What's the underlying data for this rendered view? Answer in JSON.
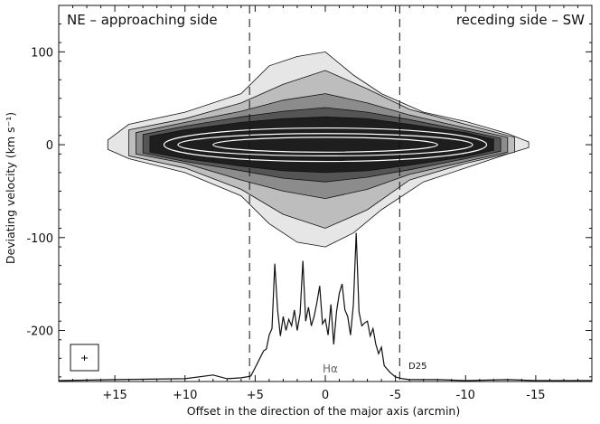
{
  "chart_data": {
    "type": "heatmap",
    "description_labels": {
      "left_label": "NE – approaching side",
      "right_label": "receding side – SW",
      "ylabel": "Deviating velocity (km s⁻¹)",
      "xlabel": "Offset in the direction of the major axis (arcmin)",
      "d25_label": "D25",
      "halpha_label": "Hα"
    },
    "x_axis": {
      "xlim": [
        19,
        -19
      ],
      "ticks": [
        15,
        10,
        5,
        0,
        -5,
        -10,
        -15
      ],
      "tick_labels": [
        "+15",
        "+10",
        "+5",
        "0",
        "-5",
        "-10",
        "-15"
      ],
      "reversed": true
    },
    "y_axis": {
      "ylim": [
        -255,
        150
      ],
      "ticks": [
        100,
        0,
        -100,
        -200
      ],
      "tick_labels": [
        "100",
        "0",
        "-100",
        "-200"
      ]
    },
    "d25_markers": [
      5.4,
      -5.3
    ],
    "contour_levels": [
      {
        "half_width_profile": [
          [
            15.5,
            5
          ],
          [
            14,
            22
          ],
          [
            10,
            35
          ],
          [
            6,
            55
          ],
          [
            4,
            85
          ],
          [
            2,
            95
          ],
          [
            0,
            100
          ],
          [
            -2,
            75
          ],
          [
            -4,
            55
          ],
          [
            -7,
            35
          ],
          [
            -10,
            25
          ],
          [
            -13,
            12
          ],
          [
            -14.5,
            3
          ]
        ],
        "lower_profile": [
          [
            15.5,
            -5
          ],
          [
            14,
            -15
          ],
          [
            10,
            -30
          ],
          [
            6,
            -55
          ],
          [
            4,
            -85
          ],
          [
            2,
            -105
          ],
          [
            0,
            -110
          ],
          [
            -2,
            -95
          ],
          [
            -4,
            -70
          ],
          [
            -7,
            -40
          ],
          [
            -10,
            -25
          ],
          [
            -13,
            -10
          ],
          [
            -14.5,
            -3
          ]
        ],
        "fill": "#e6e6e6"
      },
      {
        "half_width_profile": [
          [
            14,
            16
          ],
          [
            10,
            28
          ],
          [
            6,
            45
          ],
          [
            3,
            65
          ],
          [
            0,
            80
          ],
          [
            -3,
            60
          ],
          [
            -6,
            38
          ],
          [
            -10,
            22
          ],
          [
            -13.5,
            8
          ]
        ],
        "lower_profile": [
          [
            14,
            -12
          ],
          [
            10,
            -25
          ],
          [
            6,
            -48
          ],
          [
            3,
            -75
          ],
          [
            0,
            -90
          ],
          [
            -3,
            -70
          ],
          [
            -6,
            -38
          ],
          [
            -10,
            -20
          ],
          [
            -13.5,
            -8
          ]
        ],
        "fill": "#bdbdbd"
      },
      {
        "half_width_profile": [
          [
            13.5,
            13
          ],
          [
            10,
            24
          ],
          [
            6,
            36
          ],
          [
            3,
            48
          ],
          [
            0,
            55
          ],
          [
            -3,
            45
          ],
          [
            -6,
            32
          ],
          [
            -10,
            18
          ],
          [
            -13,
            8
          ]
        ],
        "lower_profile": [
          [
            13.5,
            -10
          ],
          [
            10,
            -20
          ],
          [
            6,
            -38
          ],
          [
            3,
            -50
          ],
          [
            0,
            -58
          ],
          [
            -3,
            -48
          ],
          [
            -6,
            -32
          ],
          [
            -10,
            -18
          ],
          [
            -13,
            -8
          ]
        ],
        "fill": "#8c8c8c"
      },
      {
        "half_width_profile": [
          [
            13,
            11
          ],
          [
            10,
            20
          ],
          [
            6,
            30
          ],
          [
            3,
            36
          ],
          [
            0,
            40
          ],
          [
            -3,
            35
          ],
          [
            -6,
            27
          ],
          [
            -10,
            15
          ],
          [
            -12.5,
            7
          ]
        ],
        "lower_profile": [
          [
            13,
            -9
          ],
          [
            10,
            -18
          ],
          [
            6,
            -28
          ],
          [
            3,
            -36
          ],
          [
            0,
            -40
          ],
          [
            -3,
            -35
          ],
          [
            -6,
            -27
          ],
          [
            -10,
            -15
          ],
          [
            -12.5,
            -7
          ]
        ],
        "fill": "#555555"
      },
      {
        "half_width_profile": [
          [
            12.5,
            9
          ],
          [
            10,
            16
          ],
          [
            6,
            24
          ],
          [
            3,
            28
          ],
          [
            0,
            30
          ],
          [
            -3,
            28
          ],
          [
            -6,
            22
          ],
          [
            -10,
            13
          ],
          [
            -12,
            6
          ]
        ],
        "lower_profile": [
          [
            12.5,
            -8
          ],
          [
            10,
            -15
          ],
          [
            6,
            -23
          ],
          [
            3,
            -28
          ],
          [
            0,
            -30
          ],
          [
            -3,
            -28
          ],
          [
            -6,
            -22
          ],
          [
            -10,
            -13
          ],
          [
            -12,
            -6
          ]
        ],
        "fill": "#1e1e1e"
      }
    ],
    "white_contours": [
      {
        "x_range": [
          11.5,
          -11.5
        ],
        "half_height": 18
      },
      {
        "x_range": [
          10.5,
          -10.5
        ],
        "half_height": 12
      },
      {
        "x_range": [
          8,
          -8
        ],
        "half_height": 8
      }
    ],
    "halpha_profile": {
      "x": [
        19,
        15,
        10,
        8,
        7,
        6,
        5.6,
        5.3,
        5,
        4.6,
        4.4,
        4.2,
        4.0,
        3.8,
        3.6,
        3.4,
        3.2,
        3.0,
        2.8,
        2.6,
        2.4,
        2.2,
        2.0,
        1.8,
        1.6,
        1.4,
        1.2,
        1.0,
        0.8,
        0.6,
        0.4,
        0.2,
        0.0,
        -0.2,
        -0.4,
        -0.6,
        -0.8,
        -1.0,
        -1.2,
        -1.4,
        -1.6,
        -1.8,
        -2.0,
        -2.2,
        -2.4,
        -2.6,
        -2.8,
        -3.0,
        -3.2,
        -3.4,
        -3.6,
        -3.8,
        -4.0,
        -4.2,
        -4.6,
        -5.0,
        -5.5,
        -6,
        -8,
        -10,
        -13,
        -15,
        -19
      ],
      "y": [
        -254,
        -253,
        -252,
        -248,
        -252,
        -251,
        -250,
        -249,
        -240,
        -228,
        -222,
        -220,
        -205,
        -198,
        -128,
        -178,
        -206,
        -185,
        -200,
        -188,
        -195,
        -178,
        -200,
        -182,
        -125,
        -190,
        -175,
        -195,
        -185,
        -170,
        -152,
        -193,
        -188,
        -205,
        -172,
        -215,
        -180,
        -160,
        -150,
        -178,
        -185,
        -205,
        -172,
        -95,
        -180,
        -195,
        -192,
        -190,
        -206,
        -198,
        -215,
        -225,
        -218,
        -238,
        -245,
        -250,
        -252,
        -253,
        -253,
        -254,
        -253,
        -254,
        -254
      ]
    }
  }
}
